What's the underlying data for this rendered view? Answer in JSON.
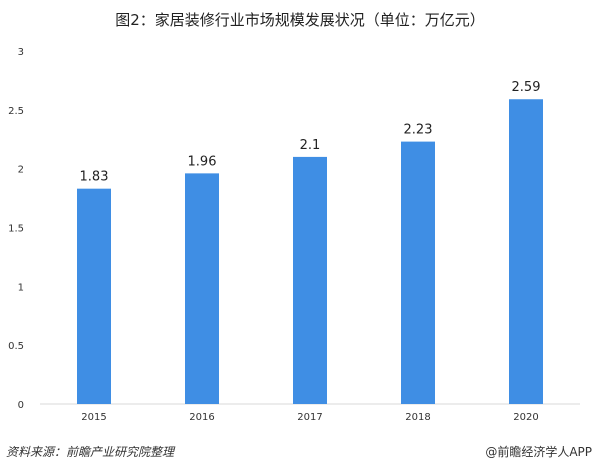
{
  "chart_data": {
    "type": "bar",
    "title": "图2：家居装修行业市场规模发展状况（单位：万亿元）",
    "categories": [
      "2015",
      "2016",
      "2017",
      "2018",
      "2020"
    ],
    "values": [
      1.83,
      1.96,
      2.1,
      2.23,
      2.59
    ],
    "data_labels": [
      "1.83",
      "1.96",
      "2.1",
      "2.23",
      "2.59"
    ],
    "ylim": [
      0,
      3
    ],
    "yticks": [
      "0",
      "0.5",
      "1",
      "1.5",
      "2",
      "2.5",
      "3"
    ],
    "bar_color": "#3f8ee4",
    "grid": false,
    "xlabel": "",
    "ylabel": ""
  },
  "footer": {
    "source": "资料来源：前瞻产业研究院整理",
    "brand": "@前瞻经济学人APP"
  }
}
